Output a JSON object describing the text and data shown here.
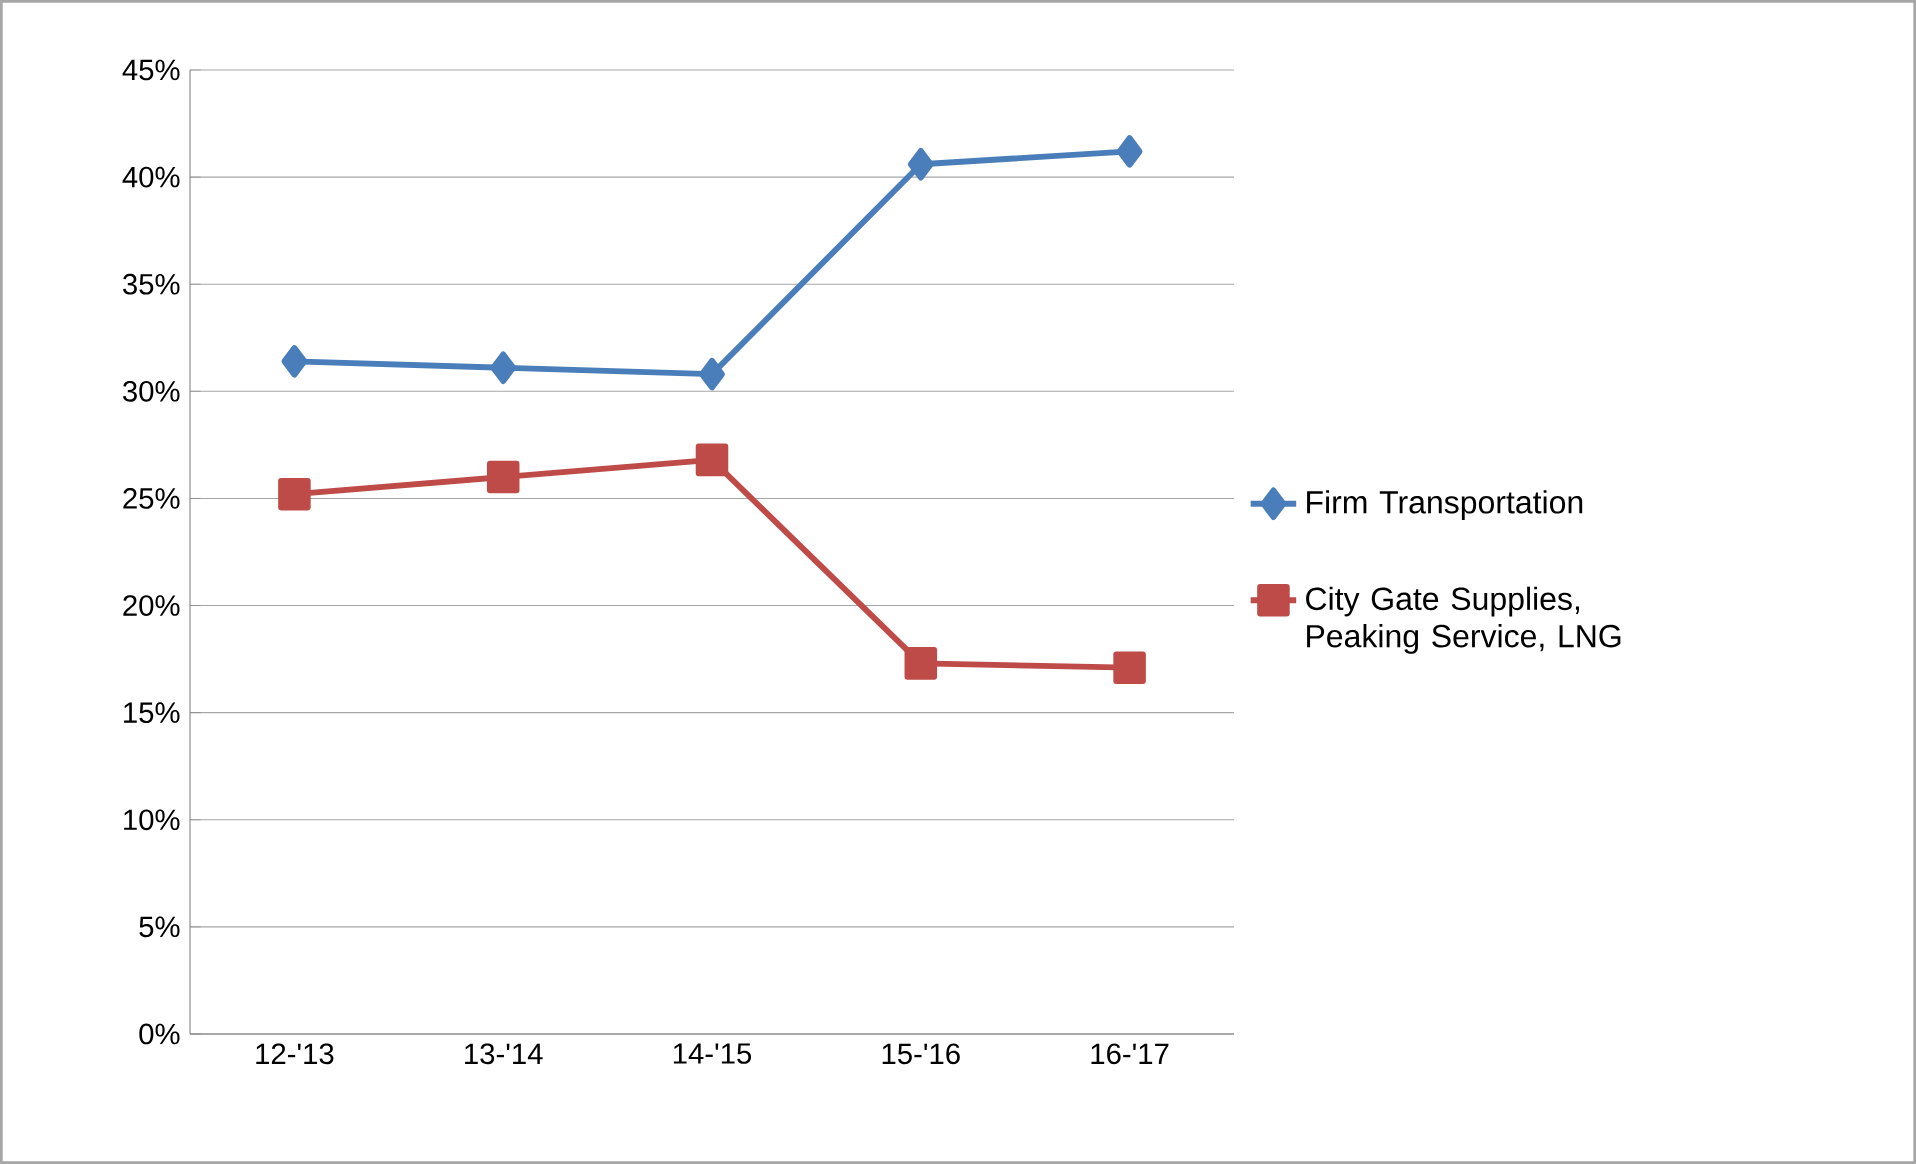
{
  "chart_data": {
    "type": "line",
    "categories": [
      "12-'13",
      "13-'14",
      "14-'15",
      "15-'16",
      "16-'17"
    ],
    "series": [
      {
        "name": "Firm Transportation",
        "color": "#4a7ebb",
        "marker": "diamond",
        "values": [
          31.4,
          31.1,
          30.8,
          40.6,
          41.2
        ]
      },
      {
        "name": "City Gate Supplies, Peaking Service, LNG",
        "color": "#be4b48",
        "marker": "square",
        "values": [
          25.2,
          26.0,
          26.8,
          17.3,
          17.1
        ]
      }
    ],
    "ylim": [
      0,
      45
    ],
    "yticks": [
      {
        "value": 0,
        "label": "0%"
      },
      {
        "value": 5,
        "label": "5%"
      },
      {
        "value": 10,
        "label": "10%"
      },
      {
        "value": 15,
        "label": "15%"
      },
      {
        "value": 20,
        "label": "20%"
      },
      {
        "value": 25,
        "label": "25%"
      },
      {
        "value": 30,
        "label": "30%"
      },
      {
        "value": 35,
        "label": "35%"
      },
      {
        "value": 40,
        "label": "40%"
      },
      {
        "value": 45,
        "label": "45%"
      }
    ],
    "grid": "y",
    "legend": "right",
    "line_style": "solid"
  }
}
